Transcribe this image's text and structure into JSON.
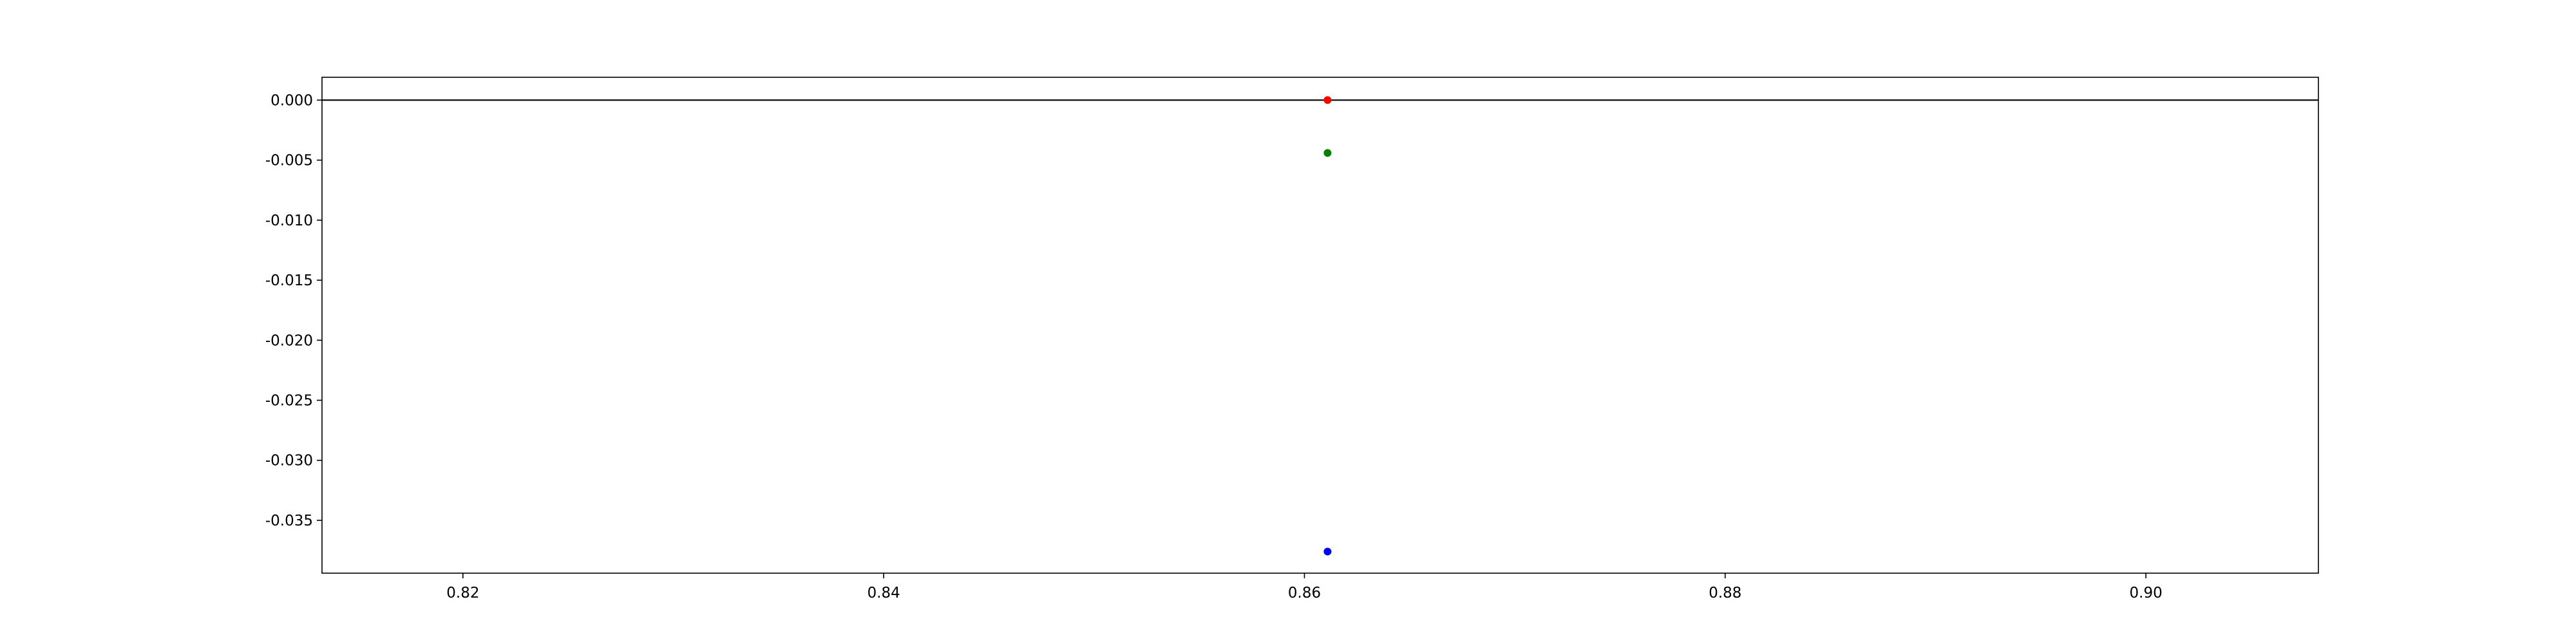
{
  "chart_data": {
    "type": "scatter",
    "title": "",
    "xlabel": "",
    "ylabel": "",
    "xlim": [
      0.8133,
      0.9082
    ],
    "ylim": [
      -0.0394,
      0.0019
    ],
    "x_ticks": [
      "0.82",
      "0.84",
      "0.86",
      "0.88",
      "0.90"
    ],
    "x_tick_values": [
      0.82,
      0.84,
      0.86,
      0.88,
      0.9
    ],
    "y_ticks": [
      "0.000",
      "-0.005",
      "-0.010",
      "-0.015",
      "-0.020",
      "-0.025",
      "-0.030",
      "-0.035"
    ],
    "y_tick_values": [
      0.0,
      -0.005,
      -0.01,
      -0.015,
      -0.02,
      -0.025,
      -0.03,
      -0.035
    ],
    "hline": {
      "y": 0.0,
      "color": "#000000"
    },
    "grid": false,
    "legend": "none",
    "series": [
      {
        "color": "#ff0000",
        "points": [
          {
            "x": 0.8611,
            "y": 0.0
          }
        ]
      },
      {
        "color": "#008000",
        "points": [
          {
            "x": 0.8611,
            "y": -0.0044
          }
        ]
      },
      {
        "color": "#0000ff",
        "points": [
          {
            "x": 0.8611,
            "y": -0.0376
          }
        ]
      }
    ]
  }
}
